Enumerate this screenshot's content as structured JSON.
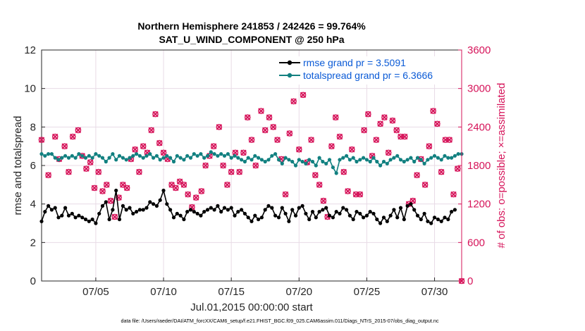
{
  "chart_data": {
    "type": "line",
    "title_line1": "Northern Hemisphere 241853 / 242426 = 99.764%",
    "title_line2": "SAT_U_WIND_COMPONENT @ 250 hPa",
    "xlabel": "Jul.01,2015 00:00:00 start",
    "ylabel_left": "rmse and totalspread",
    "ylabel_right": "# of obs: o=possible; ×=assimilated",
    "footnote": "data file: /Users/raeder/DAI/ATM_forcXX/CAM6_setup/f.e21.FHIST_BGC.f09_025.CAM6assim.011/Diags_NTrS_2015-07/obs_diag_output.nc",
    "xlim": [
      1,
      32
    ],
    "ylim_left": [
      0,
      12
    ],
    "ylim_right": [
      0,
      3600
    ],
    "grid": true,
    "legend_position": "top-right",
    "x_ticks": [
      {
        "x": 5,
        "label": "07/05"
      },
      {
        "x": 10,
        "label": "07/10"
      },
      {
        "x": 15,
        "label": "07/15"
      },
      {
        "x": 20,
        "label": "07/20"
      },
      {
        "x": 25,
        "label": "07/25"
      },
      {
        "x": 30,
        "label": "07/30"
      }
    ],
    "y_ticks_left": [
      {
        "v": 0,
        "label": "0"
      },
      {
        "v": 2,
        "label": "2"
      },
      {
        "v": 4,
        "label": "4"
      },
      {
        "v": 6,
        "label": "6"
      },
      {
        "v": 8,
        "label": "8"
      },
      {
        "v": 10,
        "label": "10"
      },
      {
        "v": 12,
        "label": "12"
      }
    ],
    "y_ticks_right": [
      {
        "v": 0,
        "label": "0"
      },
      {
        "v": 600,
        "label": "600"
      },
      {
        "v": 1200,
        "label": "1200"
      },
      {
        "v": 1800,
        "label": "1800"
      },
      {
        "v": 2400,
        "label": "2400"
      },
      {
        "v": 3000,
        "label": "3000"
      },
      {
        "v": 3600,
        "label": "3600"
      }
    ],
    "x_start": 1.0,
    "x_step": 0.25,
    "series": [
      {
        "name": "rmse",
        "legend": "rmse grand pr = 3.5091",
        "color": "#000000",
        "axis": "left",
        "values": [
          3.1,
          3.6,
          3.9,
          3.7,
          3.8,
          3.3,
          3.4,
          3.8,
          3.4,
          3.5,
          3.3,
          3.4,
          3.3,
          3.2,
          3.1,
          3.2,
          3.0,
          3.5,
          3.9,
          4.1,
          3.2,
          3.7,
          4.7,
          3.2,
          3.9,
          3.7,
          3.8,
          3.5,
          3.6,
          3.7,
          3.7,
          3.8,
          4.1,
          4.0,
          3.9,
          4.2,
          4.7,
          4.0,
          3.7,
          3.3,
          3.5,
          3.4,
          3.2,
          3.6,
          3.7,
          3.6,
          3.5,
          3.4,
          3.6,
          3.7,
          3.8,
          3.7,
          3.9,
          3.6,
          3.8,
          3.7,
          3.8,
          3.4,
          3.6,
          3.7,
          3.5,
          3.3,
          3.1,
          3.4,
          3.2,
          3.3,
          3.7,
          3.9,
          3.8,
          3.4,
          3.3,
          3.8,
          3.5,
          3.1,
          3.7,
          3.4,
          3.8,
          3.9,
          3.5,
          3.2,
          3.6,
          3.3,
          3.6,
          3.7,
          3.8,
          3.4,
          3.3,
          3.6,
          3.5,
          3.8,
          3.7,
          3.4,
          3.2,
          3.6,
          3.5,
          3.3,
          3.4,
          3.6,
          3.5,
          3.2,
          3.0,
          3.3,
          3.1,
          3.4,
          3.7,
          3.3,
          3.8,
          3.2,
          3.9,
          4.0,
          3.7,
          3.4,
          3.2,
          3.5,
          3.1,
          3.0,
          3.3,
          3.2,
          3.1,
          3.3,
          3.2,
          3.6,
          3.7
        ]
      },
      {
        "name": "totalspread",
        "legend": "totalspread grand pr = 6.3666",
        "color": "#128080",
        "axis": "left",
        "values": [
          6.6,
          6.5,
          6.6,
          6.6,
          6.4,
          6.3,
          6.4,
          6.5,
          6.4,
          6.5,
          6.4,
          6.6,
          6.5,
          6.4,
          6.5,
          6.4,
          6.6,
          6.5,
          6.4,
          6.2,
          6.4,
          6.6,
          6.3,
          6.5,
          6.4,
          6.3,
          6.4,
          6.5,
          6.6,
          6.5,
          6.4,
          6.5,
          6.6,
          6.4,
          6.5,
          6.3,
          6.4,
          6.5,
          6.4,
          6.2,
          6.5,
          6.4,
          6.3,
          6.5,
          6.4,
          6.6,
          6.5,
          6.6,
          6.4,
          6.5,
          6.7,
          6.6,
          6.5,
          6.6,
          6.5,
          6.6,
          6.4,
          6.5,
          6.4,
          6.3,
          6.2,
          6.4,
          6.3,
          6.5,
          6.4,
          6.3,
          6.2,
          6.3,
          6.5,
          6.6,
          6.3,
          6.1,
          6.4,
          6.3,
          6.2,
          6.0,
          6.3,
          6.2,
          6.1,
          6.3,
          6.2,
          6.0,
          6.4,
          6.2,
          6.1,
          6.3,
          5.9,
          5.6,
          6.3,
          6.4,
          6.5,
          6.3,
          6.4,
          6.2,
          6.3,
          6.4,
          6.3,
          6.2,
          6.4,
          6.2,
          6.0,
          6.2,
          6.1,
          6.3,
          6.4,
          6.5,
          6.3,
          6.2,
          6.3,
          6.4,
          6.2,
          6.4,
          6.3,
          6.1,
          6.3,
          6.4,
          6.5,
          6.4,
          6.3,
          6.5,
          6.4,
          6.4,
          6.5,
          6.6,
          6.6
        ]
      },
      {
        "name": "obs_possible",
        "color": "#d6145a",
        "axis": "right",
        "marker": "o",
        "points": [
          [
            1.0,
            2200
          ],
          [
            1.5,
            1650
          ],
          [
            2.0,
            2250
          ],
          [
            2.3,
            1900
          ],
          [
            2.7,
            2100
          ],
          [
            3.0,
            1700
          ],
          [
            3.3,
            2250
          ],
          [
            3.7,
            2350
          ],
          [
            4.0,
            1950
          ],
          [
            4.3,
            1750
          ],
          [
            4.6,
            1850
          ],
          [
            4.9,
            1450
          ],
          [
            5.2,
            1700
          ],
          [
            5.5,
            1400
          ],
          [
            5.8,
            1500
          ],
          [
            6.1,
            1250
          ],
          [
            6.4,
            1000
          ],
          [
            6.7,
            1300
          ],
          [
            7.0,
            1500
          ],
          [
            7.3,
            1450
          ],
          [
            7.6,
            1900
          ],
          [
            7.9,
            2050
          ],
          [
            8.2,
            1700
          ],
          [
            8.5,
            2100
          ],
          [
            8.8,
            2000
          ],
          [
            9.1,
            2350
          ],
          [
            9.4,
            2600
          ],
          [
            9.7,
            2150
          ],
          [
            10.0,
            2000
          ],
          [
            10.3,
            1900
          ],
          [
            10.6,
            1500
          ],
          [
            10.9,
            1450
          ],
          [
            11.2,
            1550
          ],
          [
            11.5,
            1500
          ],
          [
            11.8,
            1350
          ],
          [
            12.1,
            1150
          ],
          [
            12.4,
            1300
          ],
          [
            12.8,
            1400
          ],
          [
            13.1,
            1800
          ],
          [
            13.4,
            1950
          ],
          [
            13.7,
            2100
          ],
          [
            14.1,
            2400
          ],
          [
            14.4,
            1800
          ],
          [
            14.7,
            1500
          ],
          [
            15.0,
            1700
          ],
          [
            15.3,
            2000
          ],
          [
            15.6,
            1700
          ],
          [
            15.9,
            2000
          ],
          [
            16.2,
            2550
          ],
          [
            16.5,
            2200
          ],
          [
            16.8,
            1800
          ],
          [
            17.2,
            2650
          ],
          [
            17.5,
            2350
          ],
          [
            17.8,
            2550
          ],
          [
            18.1,
            2400
          ],
          [
            18.4,
            2200
          ],
          [
            18.7,
            1900
          ],
          [
            19.0,
            1350
          ],
          [
            19.3,
            2300
          ],
          [
            19.6,
            2800
          ],
          [
            20.0,
            2050
          ],
          [
            20.3,
            2900
          ],
          [
            20.6,
            1850
          ],
          [
            20.9,
            2200
          ],
          [
            21.2,
            1650
          ],
          [
            21.5,
            1500
          ],
          [
            21.8,
            1250
          ],
          [
            22.1,
            1000
          ],
          [
            22.4,
            2100
          ],
          [
            22.7,
            2550
          ],
          [
            23.0,
            2250
          ],
          [
            23.3,
            1700
          ],
          [
            23.6,
            1400
          ],
          [
            23.9,
            2050
          ],
          [
            24.2,
            1350
          ],
          [
            24.5,
            1350
          ],
          [
            24.8,
            2350
          ],
          [
            25.1,
            2600
          ],
          [
            25.4,
            1950
          ],
          [
            25.7,
            2200
          ],
          [
            26.0,
            2450
          ],
          [
            26.3,
            2550
          ],
          [
            26.6,
            2000
          ],
          [
            26.9,
            2500
          ],
          [
            27.2,
            2350
          ],
          [
            27.5,
            2250
          ],
          [
            27.8,
            2250
          ],
          [
            28.1,
            1200
          ],
          [
            28.4,
            1250
          ],
          [
            28.7,
            1650
          ],
          [
            29.0,
            1900
          ],
          [
            29.3,
            1500
          ],
          [
            29.6,
            2100
          ],
          [
            29.9,
            2650
          ],
          [
            30.2,
            2450
          ],
          [
            30.5,
            1700
          ],
          [
            30.8,
            2200
          ],
          [
            31.1,
            2200
          ],
          [
            31.4,
            1350
          ],
          [
            31.7,
            1750
          ],
          [
            32.0,
            0
          ]
        ]
      },
      {
        "name": "obs_assimilated",
        "color": "#d6145a",
        "axis": "right",
        "marker": "x",
        "points": [
          [
            1.0,
            2200
          ],
          [
            1.5,
            1650
          ],
          [
            2.0,
            2250
          ],
          [
            2.3,
            1900
          ],
          [
            2.7,
            2100
          ],
          [
            3.0,
            1700
          ],
          [
            3.3,
            2250
          ],
          [
            3.7,
            2350
          ],
          [
            4.0,
            1950
          ],
          [
            4.3,
            1750
          ],
          [
            4.6,
            1850
          ],
          [
            4.9,
            1450
          ],
          [
            5.2,
            1700
          ],
          [
            5.5,
            1400
          ],
          [
            5.8,
            1500
          ],
          [
            6.1,
            1250
          ],
          [
            6.4,
            1000
          ],
          [
            6.7,
            1300
          ],
          [
            7.0,
            1500
          ],
          [
            7.3,
            1450
          ],
          [
            7.6,
            1900
          ],
          [
            7.9,
            2050
          ],
          [
            8.2,
            1700
          ],
          [
            8.5,
            2100
          ],
          [
            8.8,
            2000
          ],
          [
            9.1,
            2350
          ],
          [
            9.4,
            2600
          ],
          [
            9.7,
            2150
          ],
          [
            10.0,
            2000
          ],
          [
            10.3,
            1900
          ],
          [
            10.6,
            1500
          ],
          [
            10.9,
            1450
          ],
          [
            11.2,
            1550
          ],
          [
            11.5,
            1500
          ],
          [
            11.8,
            1350
          ],
          [
            12.1,
            1150
          ],
          [
            12.4,
            1300
          ],
          [
            12.8,
            1400
          ],
          [
            13.1,
            1800
          ],
          [
            13.4,
            1950
          ],
          [
            13.7,
            2100
          ],
          [
            14.1,
            2400
          ],
          [
            14.4,
            1800
          ],
          [
            14.7,
            1500
          ],
          [
            15.0,
            1700
          ],
          [
            15.3,
            2000
          ],
          [
            15.6,
            1700
          ],
          [
            15.9,
            2000
          ],
          [
            16.2,
            2550
          ],
          [
            16.5,
            2200
          ],
          [
            16.8,
            1800
          ],
          [
            17.2,
            2650
          ],
          [
            17.5,
            2350
          ],
          [
            17.8,
            2550
          ],
          [
            18.1,
            2400
          ],
          [
            18.4,
            2200
          ],
          [
            18.7,
            1900
          ],
          [
            19.0,
            1350
          ],
          [
            19.3,
            2300
          ],
          [
            19.6,
            2800
          ],
          [
            20.0,
            2050
          ],
          [
            20.3,
            2900
          ],
          [
            20.6,
            1850
          ],
          [
            20.9,
            2200
          ],
          [
            21.2,
            1650
          ],
          [
            21.5,
            1500
          ],
          [
            21.8,
            1250
          ],
          [
            22.1,
            1000
          ],
          [
            22.4,
            2100
          ],
          [
            22.7,
            2550
          ],
          [
            23.0,
            2250
          ],
          [
            23.3,
            1700
          ],
          [
            23.6,
            1400
          ],
          [
            23.9,
            2050
          ],
          [
            24.2,
            1350
          ],
          [
            24.5,
            1350
          ],
          [
            24.8,
            2350
          ],
          [
            25.1,
            2600
          ],
          [
            25.4,
            1950
          ],
          [
            25.7,
            2200
          ],
          [
            26.0,
            2450
          ],
          [
            26.3,
            2550
          ],
          [
            26.6,
            2000
          ],
          [
            26.9,
            2500
          ],
          [
            27.2,
            2350
          ],
          [
            27.5,
            2250
          ],
          [
            27.8,
            2250
          ],
          [
            28.1,
            1200
          ],
          [
            28.4,
            1250
          ],
          [
            28.7,
            1650
          ],
          [
            29.0,
            1900
          ],
          [
            29.3,
            1500
          ],
          [
            29.6,
            2100
          ],
          [
            29.9,
            2650
          ],
          [
            30.2,
            2450
          ],
          [
            30.5,
            1700
          ],
          [
            30.8,
            2200
          ],
          [
            31.1,
            2200
          ],
          [
            31.4,
            1350
          ],
          [
            31.7,
            1750
          ],
          [
            32.0,
            0
          ]
        ]
      }
    ]
  }
}
